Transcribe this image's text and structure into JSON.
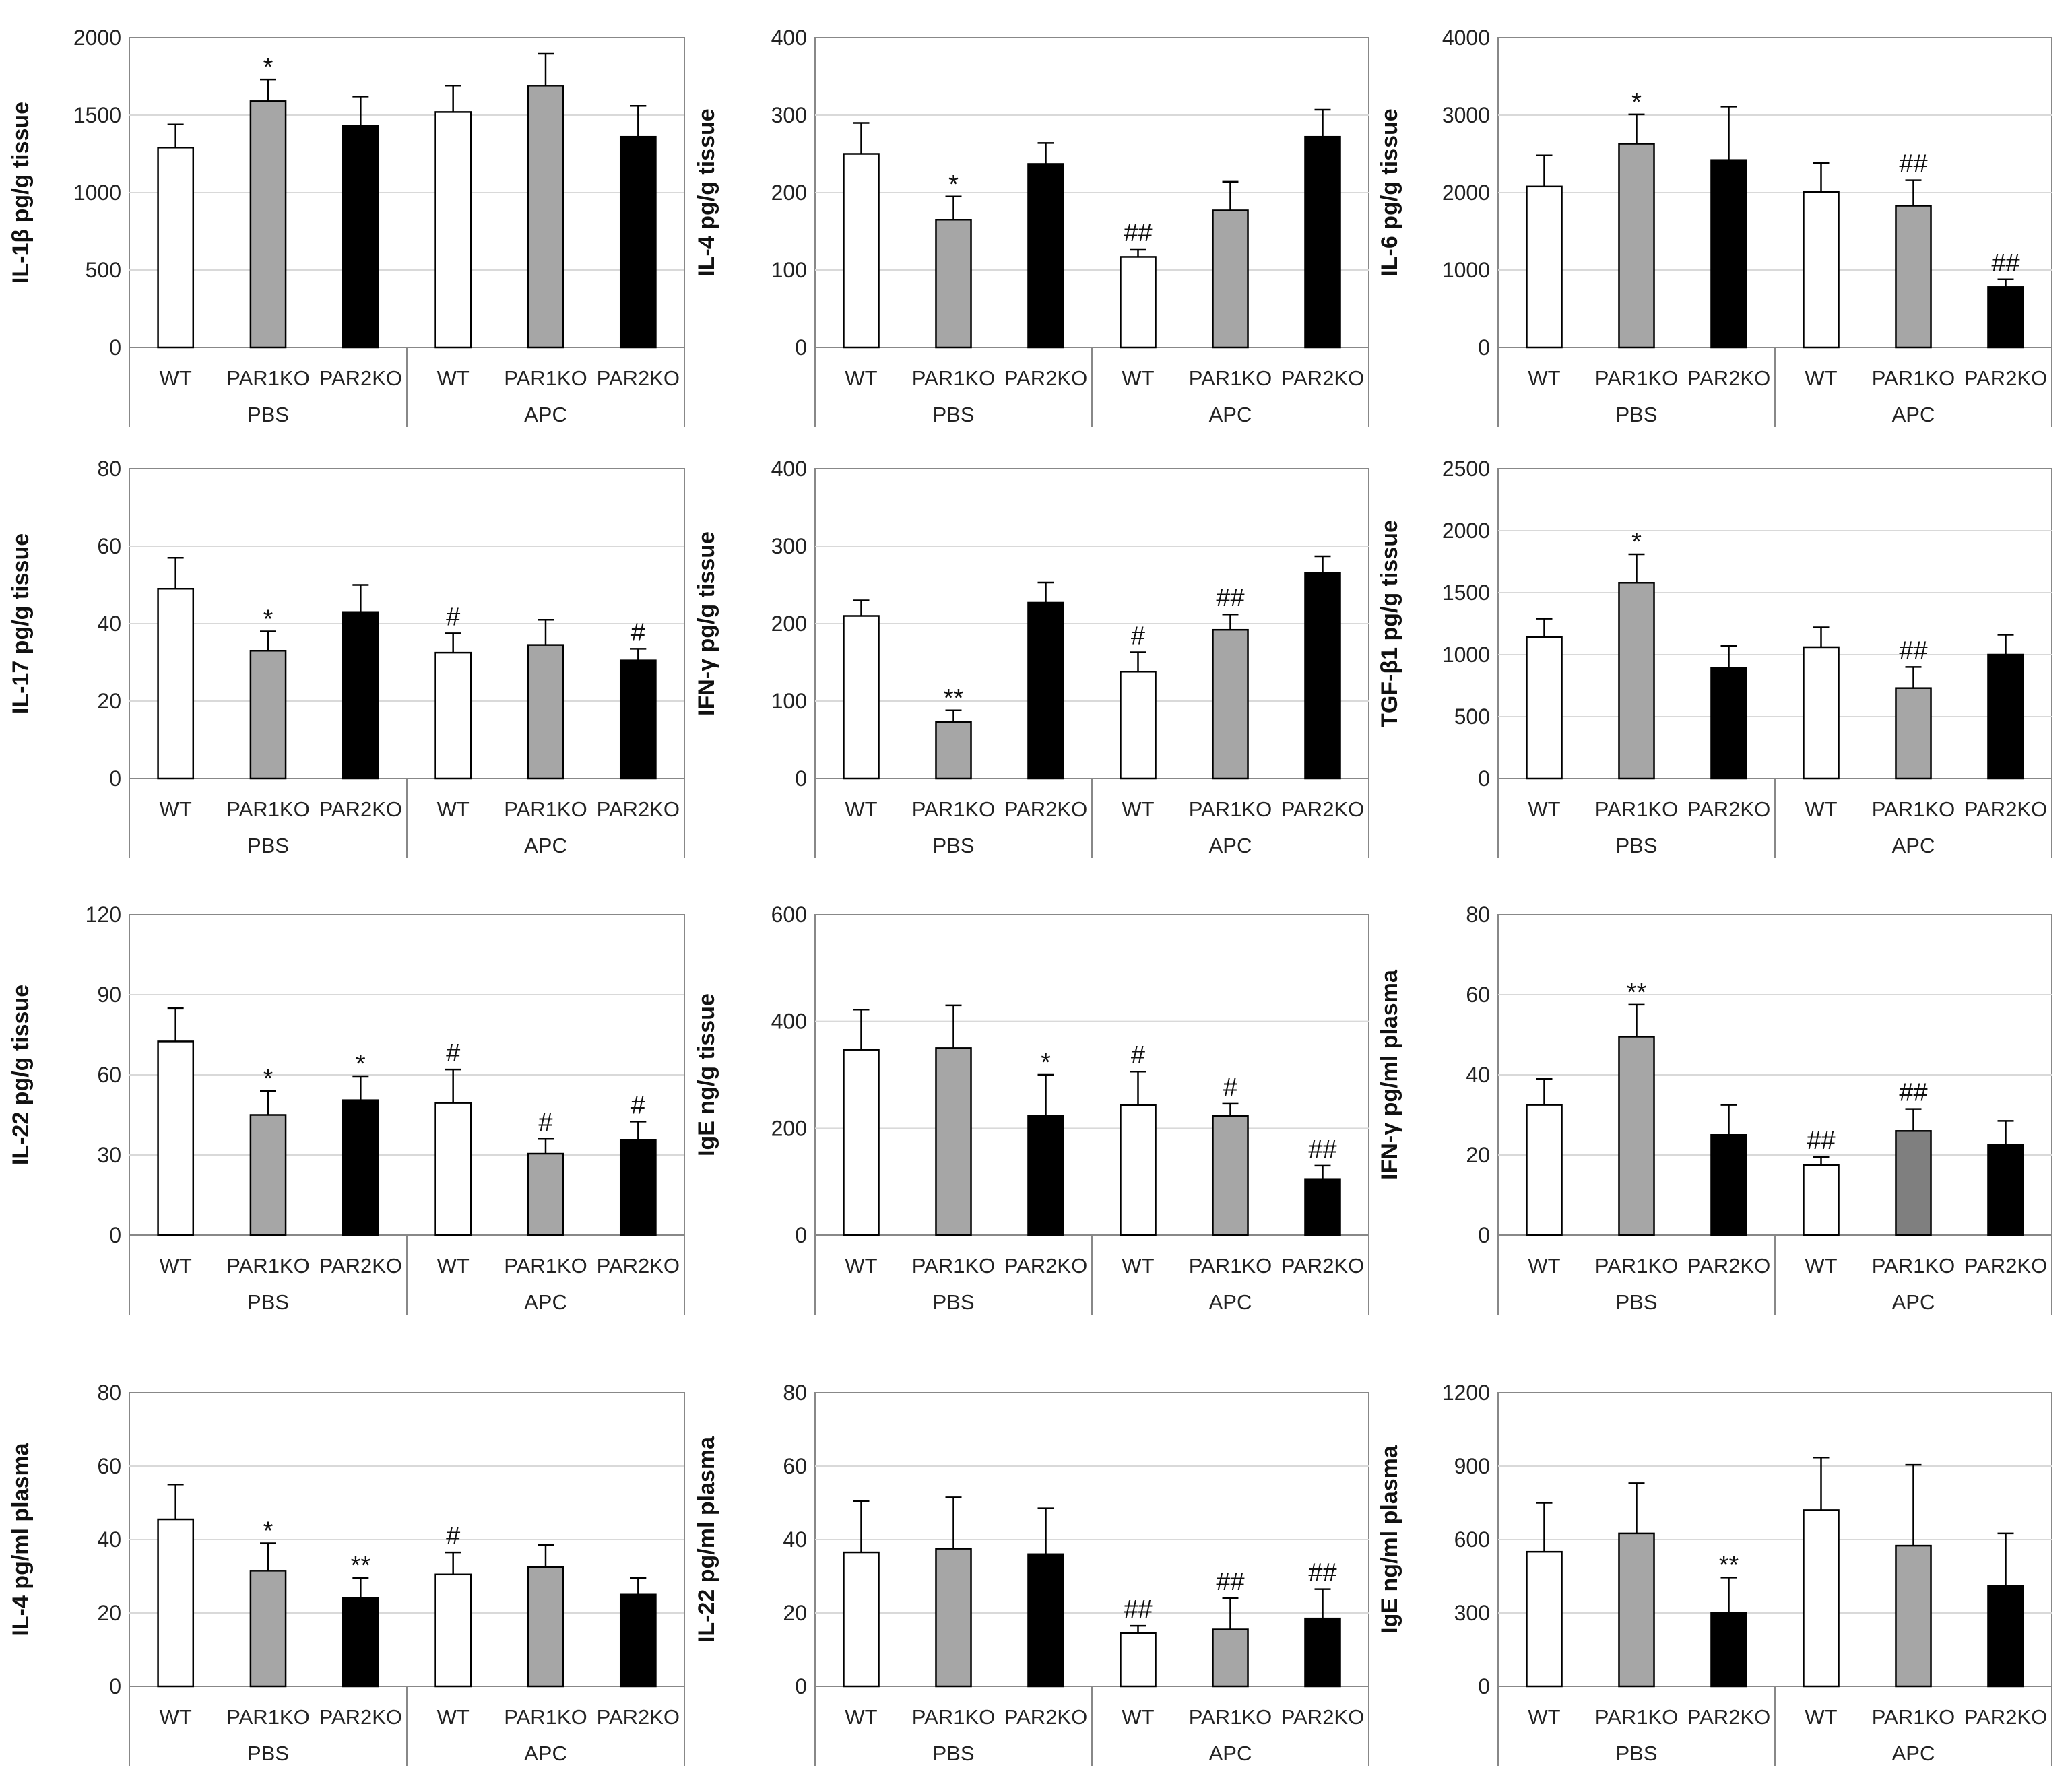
{
  "style": {
    "colors": {
      "WT": "#ffffff",
      "PAR1KO": "#a6a6a6",
      "PAR2KO": "#000000",
      "PAR1KO_dark": "#7f7f7f",
      "outline": "#000000",
      "grid": "#d9d9d9",
      "frame": "#888888"
    }
  },
  "chart_data": [
    {
      "type": "bar",
      "ylabel": "IL-1β pg/g tissue",
      "ylim": [
        0,
        2000
      ],
      "ticks": [
        0,
        500,
        1000,
        1500,
        2000
      ],
      "categories": [
        "WT",
        "PAR1KO",
        "PAR2KO",
        "WT",
        "PAR1KO",
        "PAR2KO"
      ],
      "groups": [
        "PBS",
        "APC"
      ],
      "values": [
        1290,
        1590,
        1430,
        1520,
        1690,
        1360
      ],
      "errors": [
        150,
        140,
        190,
        170,
        210,
        200
      ],
      "annotations": [
        "",
        "*",
        "",
        "",
        "",
        ""
      ]
    },
    {
      "type": "bar",
      "ylabel": "IL-4 pg/g tissue",
      "ylim": [
        0,
        400
      ],
      "ticks": [
        0,
        100,
        200,
        300,
        400
      ],
      "categories": [
        "WT",
        "PAR1KO",
        "PAR2KO",
        "WT",
        "PAR1KO",
        "PAR2KO"
      ],
      "groups": [
        "PBS",
        "APC"
      ],
      "values": [
        250,
        165,
        237,
        117,
        177,
        272
      ],
      "errors": [
        40,
        30,
        27,
        10,
        37,
        35
      ],
      "annotations": [
        "",
        "*",
        "",
        "##",
        "",
        ""
      ]
    },
    {
      "type": "bar",
      "ylabel": "IL-6 pg/g tissue",
      "ylim": [
        0,
        4000
      ],
      "ticks": [
        0,
        1000,
        2000,
        3000,
        4000
      ],
      "categories": [
        "WT",
        "PAR1KO",
        "PAR2KO",
        "WT",
        "PAR1KO",
        "PAR2KO"
      ],
      "groups": [
        "PBS",
        "APC"
      ],
      "values": [
        2080,
        2630,
        2420,
        2010,
        1830,
        780
      ],
      "errors": [
        400,
        380,
        690,
        370,
        330,
        100
      ],
      "annotations": [
        "",
        "*",
        "",
        "",
        "##",
        "##"
      ]
    },
    {
      "type": "bar",
      "ylabel": "IL-17 pg/g tissue",
      "ylim": [
        0,
        80
      ],
      "ticks": [
        0,
        20,
        40,
        60,
        80
      ],
      "categories": [
        "WT",
        "PAR1KO",
        "PAR2KO",
        "WT",
        "PAR1KO",
        "PAR2KO"
      ],
      "groups": [
        "PBS",
        "APC"
      ],
      "values": [
        49,
        33,
        43,
        32.5,
        34.5,
        30.5
      ],
      "errors": [
        8,
        5,
        7,
        5,
        6.5,
        3
      ],
      "annotations": [
        "",
        "*",
        "",
        "#",
        "",
        "#"
      ]
    },
    {
      "type": "bar",
      "ylabel": "IFN-γ pg/g tissue",
      "ylim": [
        0,
        400
      ],
      "ticks": [
        0,
        100,
        200,
        300,
        400
      ],
      "categories": [
        "WT",
        "PAR1KO",
        "PAR2KO",
        "WT",
        "PAR1KO",
        "PAR2KO"
      ],
      "groups": [
        "PBS",
        "APC"
      ],
      "values": [
        210,
        73,
        227,
        138,
        192,
        265
      ],
      "errors": [
        20,
        15,
        26,
        25,
        20,
        22
      ],
      "annotations": [
        "",
        "**",
        "",
        "#",
        "##",
        ""
      ]
    },
    {
      "type": "bar",
      "ylabel": "TGF-β1 pg/g tissue",
      "ylim": [
        0,
        2500
      ],
      "ticks": [
        0,
        500,
        1000,
        1500,
        2000,
        2500
      ],
      "categories": [
        "WT",
        "PAR1KO",
        "PAR2KO",
        "WT",
        "PAR1KO",
        "PAR2KO"
      ],
      "groups": [
        "PBS",
        "APC"
      ],
      "values": [
        1140,
        1580,
        890,
        1060,
        730,
        1000
      ],
      "errors": [
        150,
        230,
        180,
        160,
        170,
        160
      ],
      "annotations": [
        "",
        "*",
        "",
        "",
        "##",
        ""
      ]
    },
    {
      "type": "bar",
      "ylabel": "IL-22 pg/g tissue",
      "ylim": [
        0,
        120
      ],
      "ticks": [
        0,
        30,
        60,
        90,
        120
      ],
      "categories": [
        "WT",
        "PAR1KO",
        "PAR2KO",
        "WT",
        "PAR1KO",
        "PAR2KO"
      ],
      "groups": [
        "PBS",
        "APC"
      ],
      "values": [
        72.5,
        45,
        50.5,
        49.5,
        30.5,
        35.5
      ],
      "errors": [
        12.5,
        9,
        9,
        12.5,
        5.5,
        7
      ],
      "annotations": [
        "",
        "*",
        "*",
        "#",
        "#",
        "#"
      ]
    },
    {
      "type": "bar",
      "ylabel": "IgE ng/g tissue",
      "ylim": [
        0,
        600
      ],
      "ticks": [
        0,
        200,
        400,
        600
      ],
      "categories": [
        "WT",
        "PAR1KO",
        "PAR2KO",
        "WT",
        "PAR1KO",
        "PAR2KO"
      ],
      "groups": [
        "PBS",
        "APC"
      ],
      "values": [
        347,
        350,
        223,
        243,
        223,
        105
      ],
      "errors": [
        75,
        80,
        77,
        63,
        23,
        25
      ],
      "annotations": [
        "",
        "",
        "*",
        "#",
        "#",
        "##"
      ]
    },
    {
      "type": "bar",
      "ylabel": "IFN-γ pg/ml plasma",
      "ylim": [
        0,
        80
      ],
      "ticks": [
        0,
        20,
        40,
        60,
        80
      ],
      "categories": [
        "WT",
        "PAR1KO",
        "PAR2KO",
        "WT",
        "PAR1KO",
        "PAR2KO"
      ],
      "groups": [
        "PBS",
        "APC"
      ],
      "values": [
        32.5,
        49.5,
        25,
        17.5,
        26,
        22.5
      ],
      "errors": [
        6.5,
        8,
        7.5,
        2,
        5.5,
        6
      ],
      "annotations": [
        "",
        "**",
        "",
        "##",
        "##",
        ""
      ],
      "dark_bar": 4
    },
    {
      "type": "bar",
      "ylabel": "IL-4 pg/ml plasma",
      "ylim": [
        0,
        80
      ],
      "ticks": [
        0,
        20,
        40,
        60,
        80
      ],
      "categories": [
        "WT",
        "PAR1KO",
        "PAR2KO",
        "WT",
        "PAR1KO",
        "PAR2KO"
      ],
      "groups": [
        "PBS",
        "APC"
      ],
      "values": [
        45.5,
        31.5,
        24,
        30.5,
        32.5,
        25
      ],
      "errors": [
        9.5,
        7.5,
        5.5,
        6,
        6,
        4.5
      ],
      "annotations": [
        "",
        "*",
        "**",
        "#",
        "",
        ""
      ]
    },
    {
      "type": "bar",
      "ylabel": "IL-22 pg/ml plasma",
      "ylim": [
        0,
        80
      ],
      "ticks": [
        0,
        20,
        40,
        60,
        80
      ],
      "categories": [
        "WT",
        "PAR1KO",
        "PAR2KO",
        "WT",
        "PAR1KO",
        "PAR2KO"
      ],
      "groups": [
        "PBS",
        "APC"
      ],
      "values": [
        36.5,
        37.5,
        36,
        14.5,
        15.5,
        18.5
      ],
      "errors": [
        14,
        14,
        12.5,
        2,
        8.5,
        8
      ],
      "annotations": [
        "",
        "",
        "",
        "##",
        "##",
        "##"
      ]
    },
    {
      "type": "bar",
      "ylabel": "IgE ng/ml plasma",
      "ylim": [
        0,
        1200
      ],
      "ticks": [
        0,
        300,
        600,
        900,
        1200
      ],
      "categories": [
        "WT",
        "PAR1KO",
        "PAR2KO",
        "WT",
        "PAR1KO",
        "PAR2KO"
      ],
      "groups": [
        "PBS",
        "APC"
      ],
      "values": [
        550,
        625,
        300,
        720,
        575,
        410
      ],
      "errors": [
        200,
        205,
        145,
        215,
        330,
        215
      ],
      "annotations": [
        "",
        "",
        "**",
        "",
        "",
        ""
      ]
    }
  ]
}
